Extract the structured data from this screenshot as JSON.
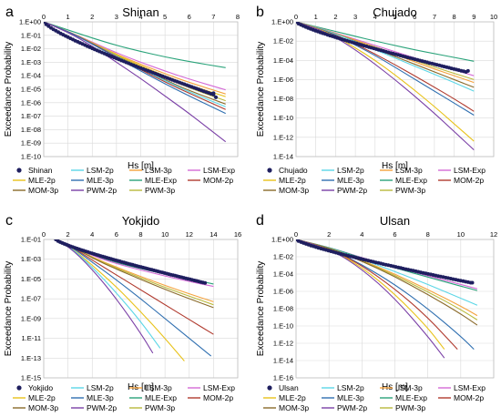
{
  "colors": {
    "obs": "#1f1f5f",
    "LSM-2p": "#5ad6e6",
    "LSM-3p": "#f4a23c",
    "LSM-Exp": "#d46ad6",
    "MLE-2p": "#e8c21a",
    "MLE-3p": "#2f6fb0",
    "MLE-Exp": "#2aa37a",
    "MOM-2p": "#b03a2e",
    "MOM-3p": "#8a6a2a",
    "PWM-2p": "#7a3fa6",
    "PWM-3p": "#b9b93a"
  },
  "legend_order": [
    "obs",
    "LSM-2p",
    "LSM-3p",
    "LSM-Exp",
    "MLE-2p",
    "MLE-3p",
    "MLE-Exp",
    "MOM-2p",
    "MOM-3p",
    "PWM-2p",
    "PWM-3p"
  ],
  "chart_data": [
    {
      "letter": "a",
      "title": "Shinan",
      "type": "line",
      "log_y": true,
      "xlabel": "Hs [m]",
      "ylabel": "Exceedance Probability",
      "xlim": [
        0,
        8
      ],
      "xticks": [
        "0",
        "1",
        "2",
        "3",
        "4",
        "5",
        "6",
        "7",
        "8"
      ],
      "ylim_exp": [
        -10,
        0
      ],
      "yticks": [
        "1.E+00",
        "1.E-01",
        "1.E-02",
        "1.E-03",
        "1.E-04",
        "1.E-05",
        "1.E-06",
        "1.E-07",
        "1.E-08",
        "1.E-09",
        "1.E-10"
      ],
      "legend_labels": [
        "Shinan",
        "LSM-2p",
        "LSM-3p",
        "LSM-Exp",
        "MLE-2p",
        "MLE-3p",
        "MLE-Exp",
        "MOM-2p",
        "MOM-3p",
        "PWM-2p",
        "PWM-3p"
      ],
      "obs": {
        "name": "Shinan",
        "x_end": 7.0,
        "y_end_exp": -5.4,
        "outliers": [
          [
            7.0,
            -5.3
          ],
          [
            7.1,
            -5.6
          ]
        ]
      },
      "series": [
        {
          "name": "MLE-Exp",
          "x": [
            0,
            1,
            2,
            3,
            4,
            5,
            6,
            7.5
          ],
          "y_exp": [
            0,
            -0.6,
            -1.2,
            -1.75,
            -2.2,
            -2.6,
            -2.95,
            -3.4
          ]
        },
        {
          "name": "LSM-Exp",
          "x": [
            0,
            1,
            2,
            3,
            4,
            5,
            6,
            7.5
          ],
          "y_exp": [
            0,
            -0.7,
            -1.5,
            -2.3,
            -3.0,
            -3.65,
            -4.25,
            -5.05
          ]
        },
        {
          "name": "LSM-3p",
          "x": [
            0,
            1,
            2,
            3,
            4,
            5,
            6,
            7.5
          ],
          "y_exp": [
            0,
            -0.7,
            -1.55,
            -2.4,
            -3.15,
            -3.85,
            -4.5,
            -5.35
          ]
        },
        {
          "name": "MLE-2p",
          "x": [
            0,
            1,
            2,
            3,
            4,
            5,
            6,
            7.5
          ],
          "y_exp": [
            0,
            -0.7,
            -1.55,
            -2.45,
            -3.25,
            -4.0,
            -4.7,
            -5.55
          ]
        },
        {
          "name": "PWM-3p",
          "x": [
            0,
            1,
            2,
            3,
            4,
            5,
            6,
            7.5
          ],
          "y_exp": [
            0,
            -0.7,
            -1.6,
            -2.5,
            -3.35,
            -4.15,
            -4.9,
            -5.85
          ]
        },
        {
          "name": "MOM-3p",
          "x": [
            0,
            1,
            2,
            3,
            4,
            5,
            6,
            7.5
          ],
          "y_exp": [
            0,
            -0.7,
            -1.6,
            -2.55,
            -3.45,
            -4.3,
            -5.1,
            -6.1
          ]
        },
        {
          "name": "LSM-2p",
          "x": [
            0,
            1,
            2,
            3,
            4,
            5,
            6,
            7.5
          ],
          "y_exp": [
            0,
            -0.7,
            -1.6,
            -2.55,
            -3.5,
            -4.35,
            -5.2,
            -6.3
          ]
        },
        {
          "name": "MOM-2p",
          "x": [
            0,
            1,
            2,
            3,
            4,
            5,
            6,
            7.5
          ],
          "y_exp": [
            0,
            -0.7,
            -1.6,
            -2.6,
            -3.55,
            -4.45,
            -5.3,
            -6.5
          ]
        },
        {
          "name": "MLE-3p",
          "x": [
            0,
            1,
            2,
            3,
            4,
            5,
            6,
            7.5
          ],
          "y_exp": [
            0,
            -0.7,
            -1.65,
            -2.65,
            -3.65,
            -4.6,
            -5.5,
            -6.8
          ]
        },
        {
          "name": "PWM-2p",
          "x": [
            0,
            1,
            2,
            3,
            4,
            5,
            6,
            7.5
          ],
          "y_exp": [
            0,
            -0.75,
            -1.8,
            -3.0,
            -4.2,
            -5.5,
            -6.8,
            -8.9
          ]
        }
      ]
    },
    {
      "letter": "b",
      "title": "Chujado",
      "type": "line",
      "log_y": true,
      "xlabel": "Hs [m]",
      "ylabel": "Exceedance Probability",
      "xlim": [
        0,
        10
      ],
      "xticks": [
        "0",
        "1",
        "2",
        "3",
        "4",
        "5",
        "6",
        "7",
        "8",
        "9",
        "10"
      ],
      "ylim_exp": [
        -14,
        0
      ],
      "yticks": [
        "1.E+00",
        "1.E-02",
        "1.E-04",
        "1.E-06",
        "1.E-08",
        "1.E-10",
        "1.E-12",
        "1.E-14"
      ],
      "legend_labels": [
        "Chujado",
        "LSM-2p",
        "LSM-3p",
        "LSM-Exp",
        "MLE-2p",
        "MLE-3p",
        "MLE-Exp",
        "MOM-2p",
        "MOM-3p",
        "PWM-2p",
        "PWM-3p"
      ],
      "obs": {
        "name": "Chujado",
        "x_end": 8.6,
        "y_end_exp": -5.2,
        "outliers": [
          [
            8.7,
            -5.1
          ]
        ]
      },
      "series": [
        {
          "name": "MLE-Exp",
          "x": [
            0,
            1,
            2,
            3,
            4,
            5,
            6,
            7,
            8,
            9
          ],
          "y_exp": [
            0,
            -0.5,
            -1.0,
            -1.5,
            -2.0,
            -2.45,
            -2.9,
            -3.3,
            -3.7,
            -4.1
          ]
        },
        {
          "name": "LSM-Exp",
          "x": [
            0,
            1,
            2,
            3,
            4,
            5,
            6,
            7,
            8,
            9
          ],
          "y_exp": [
            0,
            -0.55,
            -1.15,
            -1.8,
            -2.45,
            -3.1,
            -3.75,
            -4.4,
            -5.0,
            -5.6
          ]
        },
        {
          "name": "PWM-3p",
          "x": [
            0,
            1,
            2,
            3,
            4,
            5,
            6,
            7,
            8,
            9
          ],
          "y_exp": [
            0,
            -0.55,
            -1.2,
            -1.9,
            -2.6,
            -3.3,
            -4.0,
            -4.7,
            -5.35,
            -6.0
          ]
        },
        {
          "name": "LSM-3p",
          "x": [
            0,
            1,
            2,
            3,
            4,
            5,
            6,
            7,
            8,
            9
          ],
          "y_exp": [
            0,
            -0.55,
            -1.2,
            -1.9,
            -2.65,
            -3.4,
            -4.15,
            -4.9,
            -5.6,
            -6.3
          ]
        },
        {
          "name": "MOM-3p",
          "x": [
            0,
            1,
            2,
            3,
            4,
            5,
            6,
            7,
            8,
            9
          ],
          "y_exp": [
            0,
            -0.55,
            -1.25,
            -2.0,
            -2.8,
            -3.6,
            -4.4,
            -5.2,
            -6.0,
            -6.8
          ]
        },
        {
          "name": "LSM-2p",
          "x": [
            0,
            1,
            2,
            3,
            4,
            5,
            6,
            7,
            8,
            9
          ],
          "y_exp": [
            0,
            -0.55,
            -1.25,
            -2.05,
            -2.9,
            -3.75,
            -4.6,
            -5.45,
            -6.3,
            -7.2
          ]
        },
        {
          "name": "MOM-2p",
          "x": [
            0,
            1,
            2,
            3,
            4,
            5,
            6,
            7,
            8,
            9
          ],
          "y_exp": [
            0,
            -0.6,
            -1.35,
            -2.3,
            -3.35,
            -4.45,
            -5.6,
            -6.8,
            -8.0,
            -9.3
          ]
        },
        {
          "name": "MLE-3p",
          "x": [
            0,
            1,
            2,
            3,
            4,
            5,
            6,
            7,
            8,
            9
          ],
          "y_exp": [
            0,
            -0.6,
            -1.4,
            -2.4,
            -3.5,
            -4.7,
            -5.95,
            -7.2,
            -8.45,
            -9.7
          ]
        },
        {
          "name": "MLE-2p",
          "x": [
            0,
            1,
            2,
            3,
            4,
            5,
            6,
            7,
            8,
            9
          ],
          "y_exp": [
            0,
            -0.6,
            -1.5,
            -2.7,
            -4.0,
            -5.5,
            -7.1,
            -8.8,
            -10.6,
            -12.4
          ]
        },
        {
          "name": "PWM-2p",
          "x": [
            0,
            1,
            2,
            3,
            4,
            5,
            6,
            7,
            8,
            9
          ],
          "y_exp": [
            0,
            -0.65,
            -1.6,
            -2.9,
            -4.4,
            -6.0,
            -7.7,
            -9.5,
            -11.4,
            -13.3
          ]
        }
      ]
    },
    {
      "letter": "c",
      "title": "Yokjido",
      "type": "line",
      "log_y": true,
      "xlabel": "Hs [m]",
      "ylabel": "Exceedance Probability",
      "xlim": [
        0,
        16
      ],
      "xticks": [
        "0",
        "2",
        "4",
        "6",
        "8",
        "10",
        "12",
        "14",
        "16"
      ],
      "ylim_exp": [
        -15,
        -1
      ],
      "yticks": [
        "1.E-01",
        "1.E-03",
        "1.E-05",
        "1.E-07",
        "1.E-09",
        "1.E-11",
        "1.E-13",
        "1.E-15"
      ],
      "legend_labels": [
        "Yokjido",
        "LSM-2p",
        "LSM-3p",
        "LSM-Exp",
        "MLE-2p",
        "MLE-3p",
        "MLE-Exp",
        "MOM-2p",
        "MOM-3p",
        "PWM-2p",
        "PWM-3p"
      ],
      "obs": {
        "name": "Yokjido",
        "x_end": 13.3,
        "y_end_exp": -5.4,
        "outliers": []
      },
      "series": [
        {
          "name": "MLE-Exp",
          "x": [
            1,
            2,
            4,
            6,
            8,
            10,
            12,
            14
          ],
          "y_exp": [
            -1,
            -1.4,
            -2.6,
            -3.35,
            -3.95,
            -4.5,
            -5.0,
            -5.5
          ]
        },
        {
          "name": "LSM-Exp",
          "x": [
            1,
            2,
            4,
            6,
            8,
            10,
            12,
            14
          ],
          "y_exp": [
            -1,
            -1.4,
            -2.65,
            -3.45,
            -4.1,
            -4.7,
            -5.25,
            -5.75
          ]
        },
        {
          "name": "LSM-3p",
          "x": [
            1,
            2,
            4,
            6,
            8,
            10,
            12,
            14
          ],
          "y_exp": [
            -1,
            -1.45,
            -2.8,
            -3.8,
            -4.75,
            -5.65,
            -6.5,
            -7.3
          ]
        },
        {
          "name": "PWM-3p",
          "x": [
            1,
            2,
            4,
            6,
            8,
            10,
            12,
            14
          ],
          "y_exp": [
            -1,
            -1.45,
            -2.85,
            -3.9,
            -4.9,
            -5.85,
            -6.75,
            -7.6
          ]
        },
        {
          "name": "MOM-3p",
          "x": [
            1,
            2,
            4,
            6,
            8,
            10,
            12,
            14
          ],
          "y_exp": [
            -1,
            -1.45,
            -2.9,
            -4.0,
            -5.05,
            -6.05,
            -7.0,
            -7.9
          ]
        },
        {
          "name": "MOM-2p",
          "x": [
            1,
            2,
            4,
            6,
            8,
            10,
            12,
            14
          ],
          "y_exp": [
            -1,
            -1.5,
            -3.1,
            -4.6,
            -6.1,
            -7.6,
            -9.1,
            -10.6
          ]
        },
        {
          "name": "MLE-3p",
          "x": [
            1,
            2,
            4,
            6,
            8,
            10,
            12,
            13.8
          ],
          "y_exp": [
            -1,
            -1.5,
            -3.3,
            -5.1,
            -7.0,
            -9.0,
            -11.0,
            -12.8
          ]
        },
        {
          "name": "MLE-2p",
          "x": [
            1,
            2,
            4,
            6,
            8,
            10,
            11.6
          ],
          "y_exp": [
            -1,
            -1.55,
            -3.6,
            -5.8,
            -8.3,
            -11.0,
            -13.3
          ]
        },
        {
          "name": "LSM-2p",
          "x": [
            1,
            2,
            4,
            6,
            8,
            9.6
          ],
          "y_exp": [
            -1,
            -1.55,
            -3.8,
            -6.4,
            -9.3,
            -12.0
          ]
        },
        {
          "name": "PWM-2p",
          "x": [
            1,
            2,
            4,
            6,
            8,
            9.0
          ],
          "y_exp": [
            -1,
            -1.6,
            -4.0,
            -7.0,
            -10.5,
            -12.5
          ]
        }
      ]
    },
    {
      "letter": "d",
      "title": "Ulsan",
      "type": "line",
      "log_y": true,
      "xlabel": "Hs [m]",
      "ylabel": "Exceedance Probability",
      "xlim": [
        0,
        12
      ],
      "xticks": [
        "0",
        "2",
        "4",
        "6",
        "8",
        "10",
        "12"
      ],
      "ylim_exp": [
        -16,
        0
      ],
      "yticks": [
        "1.E+00",
        "1.E-02",
        "1.E-04",
        "1.E-06",
        "1.E-08",
        "1.E-10",
        "1.E-12",
        "1.E-14",
        "1.E-16"
      ],
      "legend_labels": [
        "Ulsan",
        "LSM-2p",
        "LSM-3p",
        "LSM-Exp",
        "MLE-2p",
        "MLE-3p",
        "MLE-Exp",
        "MOM-2p",
        "MOM-3p",
        "PWM-2p",
        "PWM-3p"
      ],
      "obs": {
        "name": "Ulsan",
        "x_end": 10.6,
        "y_end_exp": -5.0,
        "outliers": [
          [
            10.7,
            -5.0
          ]
        ]
      },
      "series": [
        {
          "name": "LSM-Exp",
          "x": [
            0,
            2,
            4,
            6,
            8,
            10,
            11
          ],
          "y_exp": [
            0,
            -0.9,
            -2.1,
            -3.2,
            -4.2,
            -5.2,
            -5.7
          ]
        },
        {
          "name": "MLE-Exp",
          "x": [
            0,
            2,
            4,
            6,
            8,
            10,
            11
          ],
          "y_exp": [
            0,
            -0.9,
            -2.15,
            -3.3,
            -4.35,
            -5.4,
            -5.9
          ]
        },
        {
          "name": "LSM-2p",
          "x": [
            0,
            2,
            4,
            6,
            8,
            10,
            11
          ],
          "y_exp": [
            0,
            -0.95,
            -2.3,
            -3.7,
            -5.2,
            -6.8,
            -7.6
          ]
        },
        {
          "name": "LSM-3p",
          "x": [
            0,
            2,
            4,
            6,
            8,
            10,
            11
          ],
          "y_exp": [
            0,
            -0.95,
            -2.4,
            -4.0,
            -5.8,
            -7.7,
            -8.8
          ]
        },
        {
          "name": "PWM-3p",
          "x": [
            0,
            2,
            4,
            6,
            8,
            10,
            11
          ],
          "y_exp": [
            0,
            -0.95,
            -2.45,
            -4.15,
            -6.05,
            -8.1,
            -9.3
          ]
        },
        {
          "name": "MOM-3p",
          "x": [
            0,
            2,
            4,
            6,
            8,
            10,
            11
          ],
          "y_exp": [
            0,
            -0.95,
            -2.5,
            -4.3,
            -6.35,
            -8.6,
            -9.9
          ]
        },
        {
          "name": "MLE-3p",
          "x": [
            0,
            2,
            4,
            6,
            8,
            10,
            10.8
          ],
          "y_exp": [
            0,
            -1.0,
            -2.9,
            -5.2,
            -8.0,
            -11.2,
            -12.7
          ]
        },
        {
          "name": "MOM-2p",
          "x": [
            0,
            2,
            4,
            6,
            8,
            9.8
          ],
          "y_exp": [
            0,
            -1.0,
            -3.0,
            -5.7,
            -9.0,
            -12.7
          ]
        },
        {
          "name": "MLE-2p",
          "x": [
            0,
            2,
            4,
            6,
            8,
            9.0
          ],
          "y_exp": [
            0,
            -1.0,
            -3.2,
            -6.3,
            -10.2,
            -12.7
          ]
        },
        {
          "name": "PWM-2p",
          "x": [
            0,
            2,
            4,
            6,
            8,
            9.0
          ],
          "y_exp": [
            0,
            -1.0,
            -3.4,
            -6.8,
            -11.2,
            -13.7
          ]
        }
      ]
    }
  ]
}
